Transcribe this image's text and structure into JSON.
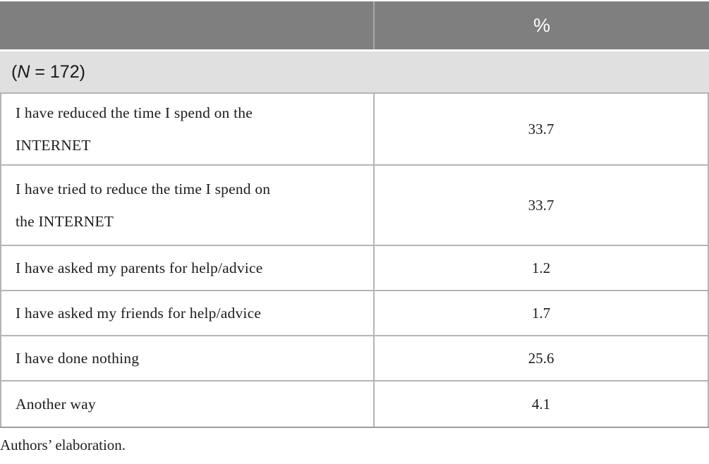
{
  "colors": {
    "header_bg": "#7f7f7f",
    "header_divider": "#a8a8a8",
    "header_text": "#ffffff",
    "subheader_bg": "#e1e0e0",
    "row_border": "#b4b4b4",
    "table_bottom_border": "#9c9c9c",
    "text": "#1c1c1c"
  },
  "table": {
    "header": {
      "col1": "",
      "percent_label": "%"
    },
    "subheader": {
      "open": "(",
      "n": "N",
      "rest": " = 172)"
    },
    "rows": [
      {
        "label": "I have reduced the time I spend on the\nINTERNET",
        "value": "33.7"
      },
      {
        "label": "I have tried to reduce the time I spend on\nthe INTERNET",
        "value": "33.7"
      },
      {
        "label": "I have asked my parents for help/advice",
        "value": "1.2"
      },
      {
        "label": "I have asked my friends for help/advice",
        "value": "1.7"
      },
      {
        "label": "I have done nothing",
        "value": "25.6"
      },
      {
        "label": "Another way",
        "value": "4.1"
      }
    ],
    "footnote": "Authors’ elaboration."
  },
  "chart_data": {
    "type": "table",
    "columns": [
      "",
      "%"
    ],
    "sample_size_note": "(N = 172)",
    "categories": [
      "I have reduced the time I spend on the INTERNET",
      "I have tried to reduce the time I spend on the INTERNET",
      "I have asked my parents for help/advice",
      "I have asked my friends for help/advice",
      "I have done nothing",
      "Another way"
    ],
    "values": [
      33.7,
      33.7,
      1.2,
      1.7,
      25.6,
      4.1
    ],
    "source": "Authors’ elaboration."
  }
}
